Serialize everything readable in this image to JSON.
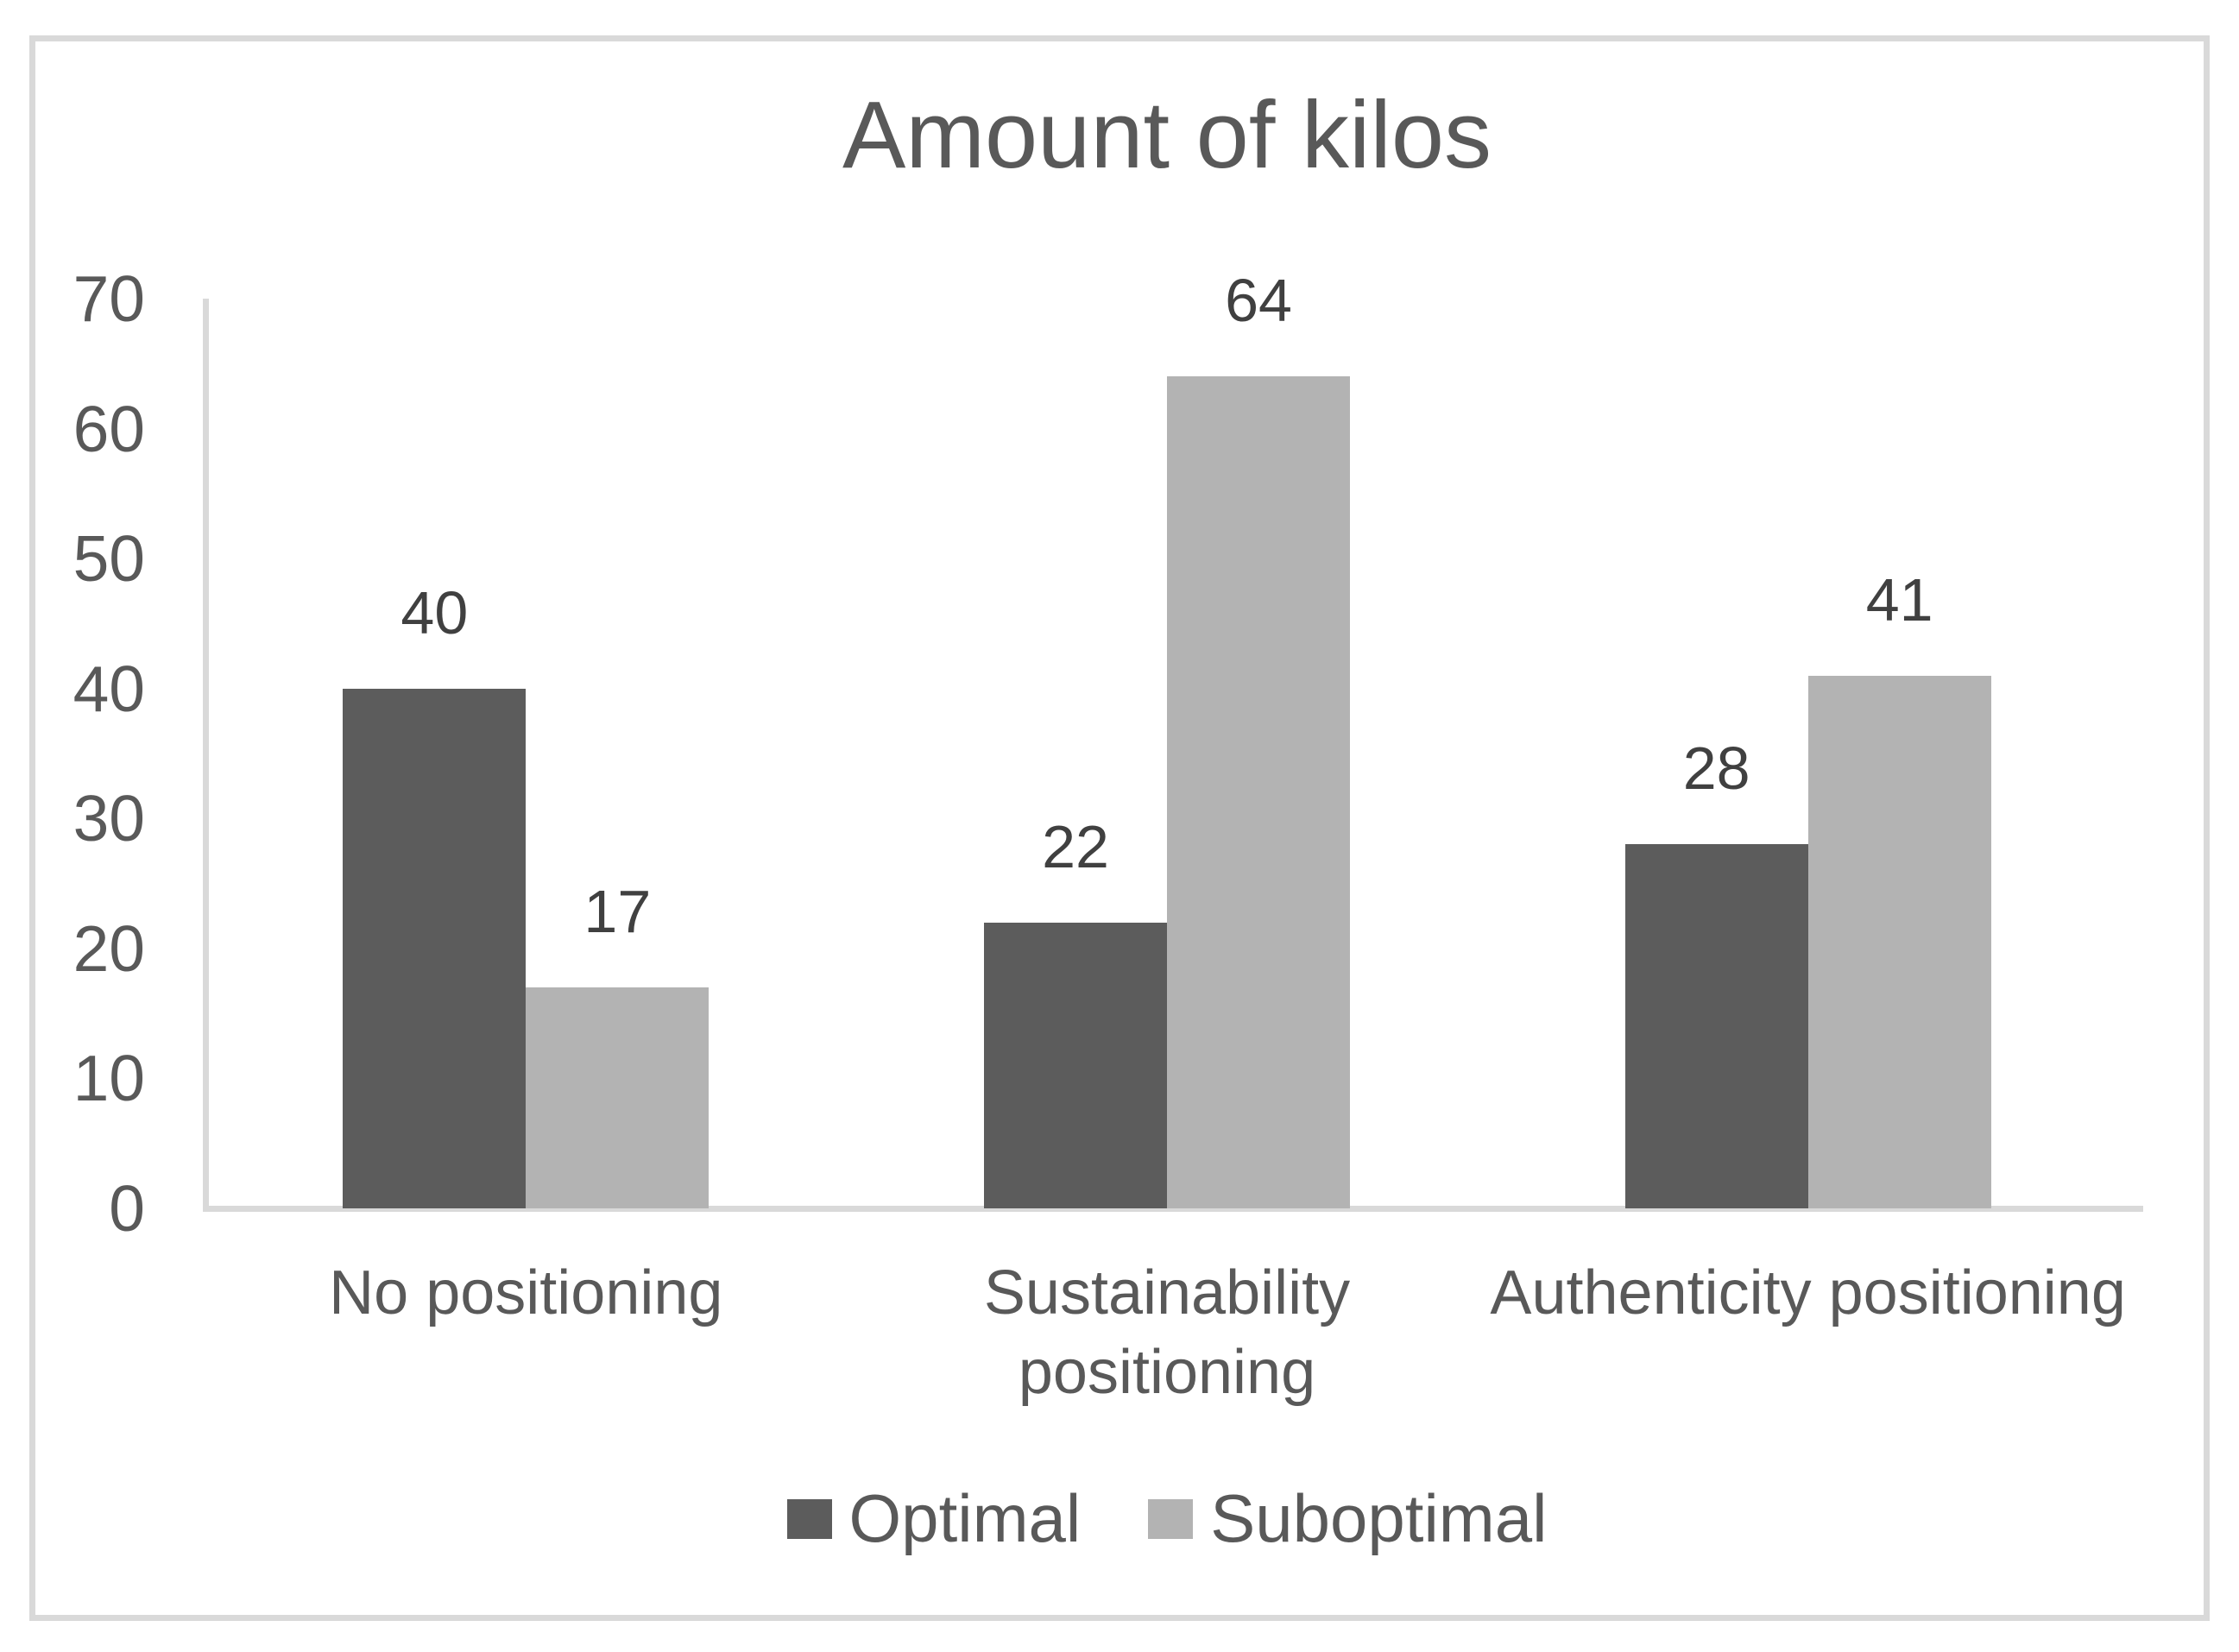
{
  "chart_data": {
    "type": "bar",
    "title": "Amount of kilos",
    "categories": [
      "No positioning",
      "Sustainability positioning",
      "Authenticity positioning"
    ],
    "series": [
      {
        "name": "Optimal",
        "color": "#5c5c5c",
        "values": [
          40,
          22,
          28
        ]
      },
      {
        "name": "Suboptimal",
        "color": "#b3b3b3",
        "values": [
          17,
          64,
          41
        ]
      }
    ],
    "ylim": [
      0,
      70
    ],
    "yticks": [
      0,
      10,
      20,
      30,
      40,
      50,
      60,
      70
    ],
    "grid": false,
    "data_labels": true,
    "legend_position": "bottom"
  },
  "colors": {
    "background": "#ffffff",
    "frame_border": "#d9d9d9",
    "axis_line": "#d9d9d9",
    "axis_text": "#595959",
    "title_text": "#595959",
    "data_label_text": "#404040"
  }
}
